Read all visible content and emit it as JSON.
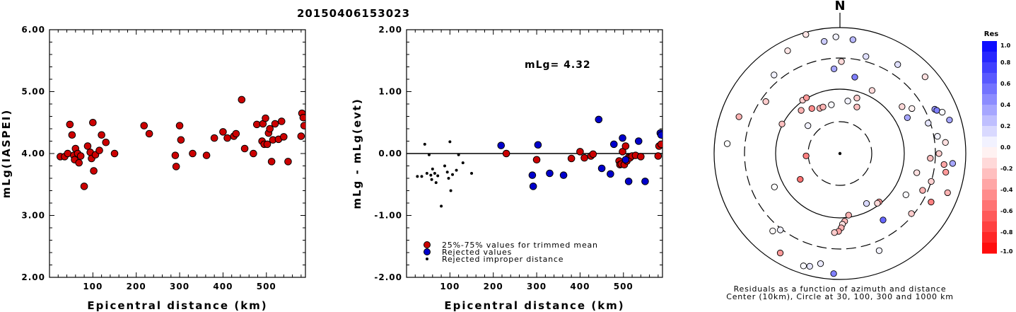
{
  "title": "20150406153023",
  "chart_data": [
    {
      "type": "scatter",
      "xlabel": "Epicentral distance (km)",
      "ylabel": "mLg(IASPEI)",
      "xlim": [
        0,
        590
      ],
      "ylim": [
        2,
        6
      ],
      "xticks": [
        "100",
        "200",
        "300",
        "400",
        "500"
      ],
      "yticks": [
        "2.00",
        "3.00",
        "4.00",
        "5.00",
        "6.00"
      ],
      "points": [
        [
          25,
          3.95
        ],
        [
          35,
          3.95
        ],
        [
          42,
          4.0
        ],
        [
          47,
          4.47
        ],
        [
          52,
          4.3
        ],
        [
          56,
          3.97
        ],
        [
          58,
          3.9
        ],
        [
          60,
          4.08
        ],
        [
          65,
          4.0
        ],
        [
          68,
          3.85
        ],
        [
          72,
          3.96
        ],
        [
          80,
          3.47
        ],
        [
          88,
          4.12
        ],
        [
          94,
          4.02
        ],
        [
          97,
          3.92
        ],
        [
          100,
          4.5
        ],
        [
          102,
          3.72
        ],
        [
          106,
          3.98
        ],
        [
          115,
          4.05
        ],
        [
          120,
          4.3
        ],
        [
          130,
          4.18
        ],
        [
          150,
          4.0
        ],
        [
          218,
          4.45
        ],
        [
          230,
          4.32
        ],
        [
          290,
          3.97
        ],
        [
          292,
          3.79
        ],
        [
          300,
          4.45
        ],
        [
          303,
          4.22
        ],
        [
          330,
          4.0
        ],
        [
          362,
          3.97
        ],
        [
          380,
          4.25
        ],
        [
          400,
          4.35
        ],
        [
          410,
          4.25
        ],
        [
          425,
          4.28
        ],
        [
          430,
          4.32
        ],
        [
          443,
          4.87
        ],
        [
          450,
          4.08
        ],
        [
          470,
          4.0
        ],
        [
          478,
          4.47
        ],
        [
          490,
          4.2
        ],
        [
          492,
          4.48
        ],
        [
          495,
          4.15
        ],
        [
          498,
          4.57
        ],
        [
          502,
          4.15
        ],
        [
          505,
          4.33
        ],
        [
          508,
          4.4
        ],
        [
          512,
          3.87
        ],
        [
          515,
          4.22
        ],
        [
          520,
          4.48
        ],
        [
          528,
          4.23
        ],
        [
          535,
          4.52
        ],
        [
          540,
          4.27
        ],
        [
          550,
          3.87
        ],
        [
          580,
          4.28
        ],
        [
          582,
          4.65
        ],
        [
          585,
          4.58
        ],
        [
          587,
          4.45
        ]
      ]
    },
    {
      "type": "scatter",
      "xlabel": "Epicentral distance (km)",
      "ylabel": "mLg - mLg(evt)",
      "xlim": [
        0,
        590
      ],
      "ylim": [
        -2,
        2
      ],
      "xticks": [
        "100",
        "200",
        "300",
        "400",
        "500"
      ],
      "yticks": [
        "-2.00",
        "-1.00",
        "0.00",
        "1.00",
        "2.00"
      ],
      "annotation": "mLg= 4.32",
      "legend": [
        {
          "label": "25%-75% values for trimmed mean",
          "color": "#cc0000",
          "marker": "circle"
        },
        {
          "label": "Rejected values",
          "color": "#0000cc",
          "marker": "circle"
        },
        {
          "label": "Rejected improper distance",
          "color": "#000000",
          "marker": "dot"
        }
      ],
      "series": [
        {
          "name": "25%-75% values for trimmed mean",
          "color": "#cc0000",
          "points": [
            [
              230,
              0.0
            ],
            [
              300,
              -0.1
            ],
            [
              380,
              -0.08
            ],
            [
              400,
              0.03
            ],
            [
              410,
              -0.07
            ],
            [
              425,
              -0.04
            ],
            [
              430,
              -0.01
            ],
            [
              490,
              -0.12
            ],
            [
              492,
              -0.18
            ],
            [
              495,
              -0.17
            ],
            [
              498,
              0.03
            ],
            [
              502,
              -0.18
            ],
            [
              505,
              0.12
            ],
            [
              508,
              -0.12
            ],
            [
              512,
              -0.06
            ],
            [
              515,
              -0.07
            ],
            [
              520,
              -0.04
            ],
            [
              528,
              -0.03
            ],
            [
              540,
              -0.05
            ],
            [
              580,
              -0.04
            ],
            [
              582,
              0.12
            ],
            [
              587,
              0.15
            ]
          ]
        },
        {
          "name": "Rejected values",
          "color": "#0000cc",
          "points": [
            [
              218,
              0.13
            ],
            [
              290,
              -0.35
            ],
            [
              292,
              -0.53
            ],
            [
              303,
              0.14
            ],
            [
              330,
              -0.32
            ],
            [
              362,
              -0.35
            ],
            [
              443,
              0.55
            ],
            [
              450,
              -0.24
            ],
            [
              470,
              -0.33
            ],
            [
              478,
              0.15
            ],
            [
              498,
              0.25
            ],
            [
              505,
              -0.1
            ],
            [
              512,
              -0.45
            ],
            [
              535,
              0.2
            ],
            [
              550,
              -0.45
            ],
            [
              585,
              0.33
            ],
            [
              587,
              0.3
            ]
          ]
        },
        {
          "name": "Rejected improper distance",
          "color": "#000000",
          "points": [
            [
              25,
              -0.37
            ],
            [
              35,
              -0.37
            ],
            [
              42,
              0.15
            ],
            [
              47,
              -0.32
            ],
            [
              52,
              -0.02
            ],
            [
              56,
              -0.35
            ],
            [
              58,
              -0.42
            ],
            [
              60,
              -0.25
            ],
            [
              65,
              -0.32
            ],
            [
              68,
              -0.47
            ],
            [
              72,
              -0.36
            ],
            [
              80,
              -0.85
            ],
            [
              88,
              -0.2
            ],
            [
              94,
              -0.3
            ],
            [
              97,
              -0.4
            ],
            [
              100,
              0.19
            ],
            [
              102,
              -0.6
            ],
            [
              106,
              -0.34
            ],
            [
              115,
              -0.27
            ],
            [
              120,
              -0.02
            ],
            [
              130,
              -0.15
            ],
            [
              150,
              -0.32
            ]
          ]
        }
      ]
    },
    {
      "type": "polar",
      "north_label": "N",
      "caption": [
        "Residuals as a function of azimuth and distance",
        "Center (10km), Circle at 30, 100, 300 and 1000 km"
      ],
      "colorbar": {
        "title": "Res",
        "ticks": [
          "1.0",
          "0.8",
          "0.6",
          "0.4",
          "0.2",
          "0.0",
          "-0.2",
          "-0.4",
          "-0.6",
          "-0.8",
          "-1.0"
        ],
        "range": [
          -1.0,
          1.0
        ]
      },
      "points": [
        [
          0.9,
          -0.15
        ],
        [
          6.5,
          0.28
        ],
        [
          8.5,
          0.05
        ],
        [
          11,
          0.5
        ],
        [
          15,
          0.12
        ],
        [
          17,
          -0.2
        ],
        [
          20,
          -0.25
        ],
        [
          27,
          -0.15
        ],
        [
          33,
          0.12
        ],
        [
          48,
          -0.12
        ],
        [
          53,
          -0.15
        ],
        [
          58,
          -0.05
        ],
        [
          62,
          0.35
        ],
        [
          65,
          0.4
        ],
        [
          66,
          0.5
        ],
        [
          68,
          0.02
        ],
        [
          71,
          0.1
        ],
        [
          73,
          0.35
        ],
        [
          80,
          0.05
        ],
        [
          84,
          -0.12
        ],
        [
          90,
          -0.2
        ],
        [
          93,
          -0.25
        ],
        [
          95,
          0.35
        ],
        [
          96,
          -0.35
        ],
        [
          100,
          -0.4
        ],
        [
          104,
          -0.12
        ],
        [
          107,
          -0.18
        ],
        [
          110,
          -0.3
        ],
        [
          114,
          -0.3
        ],
        [
          118,
          -0.5
        ],
        [
          122,
          0.02
        ],
        [
          130,
          -0.2
        ],
        [
          141,
          -0.4
        ],
        [
          143,
          -0.15
        ],
        [
          147,
          0.6
        ],
        [
          152,
          0.15
        ],
        [
          158,
          0.05
        ],
        [
          172,
          -0.3
        ],
        [
          176,
          -0.28
        ],
        [
          178,
          -0.12
        ],
        [
          179,
          -0.3
        ],
        [
          181,
          -0.35
        ],
        [
          183,
          0.5
        ],
        [
          184,
          -0.2
        ],
        [
          190,
          0.08
        ],
        [
          195,
          0.1
        ],
        [
          198,
          0.02
        ],
        [
          211,
          -0.4
        ],
        [
          218,
          0.05
        ],
        [
          221,
          -0.02
        ],
        [
          237,
          -0.55
        ],
        [
          243,
          0.0
        ],
        [
          266,
          -0.5
        ],
        [
          275,
          0.0
        ],
        [
          290,
          -0.3
        ],
        [
          297,
          -0.25
        ],
        [
          305,
          -0.2
        ],
        [
          311,
          0.05
        ],
        [
          318,
          -0.3
        ],
        [
          320,
          0.05
        ],
        [
          325,
          -0.2
        ],
        [
          328,
          -0.45
        ],
        [
          329,
          -0.4
        ],
        [
          333,
          -0.1
        ],
        [
          336,
          -0.3
        ],
        [
          340,
          -0.3
        ],
        [
          344,
          -0.1
        ],
        [
          350,
          0.02
        ],
        [
          352,
          0.2
        ],
        [
          356,
          0.35
        ],
        [
          358,
          0.05
        ]
      ]
    }
  ]
}
